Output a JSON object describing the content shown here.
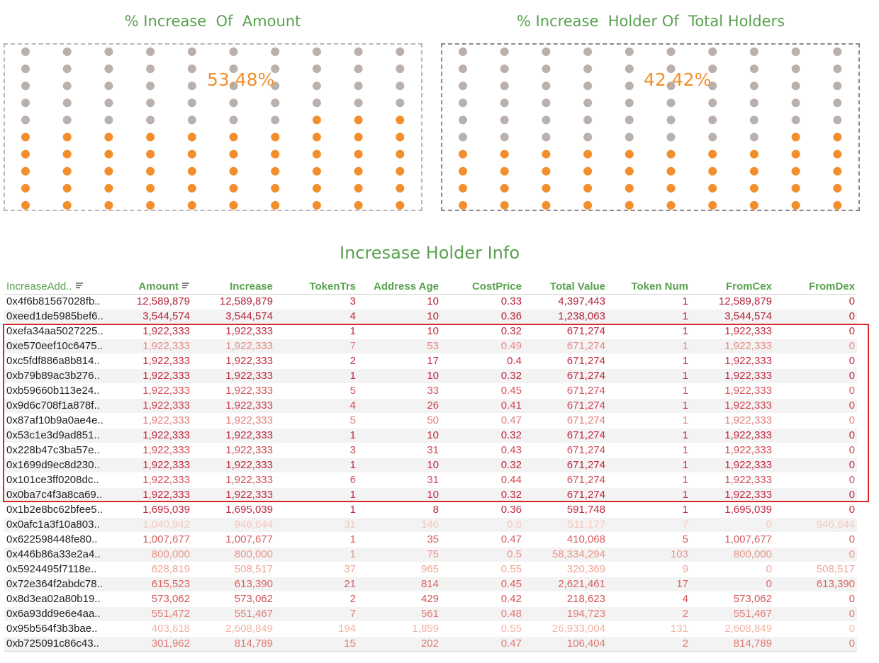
{
  "panels": [
    {
      "title": "% Increase  Of  Amount",
      "value_label": "53.48%",
      "percent": 53.48,
      "rows": 10,
      "cols": 10
    },
    {
      "title": "% Increase  Holder Of  Total Holders",
      "value_label": "42.42%",
      "percent": 42.42,
      "rows": 10,
      "cols": 10
    }
  ],
  "colors": {
    "filled": "#f28e2b",
    "empty": "#bab0ac",
    "title_green": "#59a14f",
    "highlight": "#d62728"
  },
  "table": {
    "title": "Incresase Holder Info",
    "columns": [
      "IncreaseAdd..",
      "Amount",
      "Increase",
      "TokenTrs",
      "Address Age",
      "CostPrice",
      "Total Value",
      "Token Num",
      "FromCex",
      "FromDex"
    ],
    "sorted_columns": [
      "IncreaseAdd..",
      "Amount"
    ],
    "rows": [
      {
        "cells": [
          "0x4f6b81567028fb..",
          "12,589,879",
          "12,589,879",
          "3",
          "10",
          "0.33",
          "4,397,443",
          "1",
          "12,589,879",
          "0"
        ],
        "color": "#b4243a"
      },
      {
        "cells": [
          "0xeed1de5985bef6..",
          "3,544,574",
          "3,544,574",
          "4",
          "10",
          "0.36",
          "1,238,063",
          "1",
          "3,544,574",
          "0"
        ],
        "color": "#b4243a"
      },
      {
        "cells": [
          "0xefa34aa5027225..",
          "1,922,333",
          "1,922,333",
          "1",
          "10",
          "0.32",
          "671,274",
          "1",
          "1,922,333",
          "0"
        ],
        "color": "#c0283f"
      },
      {
        "cells": [
          "0xe570eef10c6475..",
          "1,922,333",
          "1,922,333",
          "7",
          "53",
          "0.49",
          "671,274",
          "1",
          "1,922,333",
          "0"
        ],
        "color": "#e58a86"
      },
      {
        "cells": [
          "0xc5fdf886a8b814..",
          "1,922,333",
          "1,922,333",
          "2",
          "17",
          "0.4",
          "671,274",
          "1",
          "1,922,333",
          "0"
        ],
        "color": "#c52f44"
      },
      {
        "cells": [
          "0xb79b89ac3b276..",
          "1,922,333",
          "1,922,333",
          "1",
          "10",
          "0.32",
          "671,274",
          "1",
          "1,922,333",
          "0"
        ],
        "color": "#c0283f"
      },
      {
        "cells": [
          "0xb59660b113e24..",
          "1,922,333",
          "1,922,333",
          "5",
          "33",
          "0.45",
          "671,274",
          "1",
          "1,922,333",
          "0"
        ],
        "color": "#d4565c"
      },
      {
        "cells": [
          "0x9d6c708f1a878f..",
          "1,922,333",
          "1,922,333",
          "4",
          "26",
          "0.41",
          "671,274",
          "1",
          "1,922,333",
          "0"
        ],
        "color": "#cc4451"
      },
      {
        "cells": [
          "0x87af10b9a0ae4e..",
          "1,922,333",
          "1,922,333",
          "5",
          "50",
          "0.47",
          "671,274",
          "1",
          "1,922,333",
          "0"
        ],
        "color": "#e07e7c"
      },
      {
        "cells": [
          "0x53c1e3d9ad851..",
          "1,922,333",
          "1,922,333",
          "1",
          "10",
          "0.32",
          "671,274",
          "1",
          "1,922,333",
          "0"
        ],
        "color": "#c0283f"
      },
      {
        "cells": [
          "0x228b47c3ba57e..",
          "1,922,333",
          "1,922,333",
          "3",
          "31",
          "0.43",
          "671,274",
          "1",
          "1,922,333",
          "0"
        ],
        "color": "#cf4a55"
      },
      {
        "cells": [
          "0x1699d9ec8d230..",
          "1,922,333",
          "1,922,333",
          "1",
          "10",
          "0.32",
          "671,274",
          "1",
          "1,922,333",
          "0"
        ],
        "color": "#c0283f"
      },
      {
        "cells": [
          "0x101ce3ff0208dc..",
          "1,922,333",
          "1,922,333",
          "6",
          "31",
          "0.44",
          "671,274",
          "1",
          "1,922,333",
          "0"
        ],
        "color": "#d14f58"
      },
      {
        "cells": [
          "0x0ba7c4f3a8ca69..",
          "1,922,333",
          "1,922,333",
          "1",
          "10",
          "0.32",
          "671,274",
          "1",
          "1,922,333",
          "0"
        ],
        "color": "#c0283f"
      },
      {
        "cells": [
          "0x1b2e8bc62bfee5..",
          "1,695,039",
          "1,695,039",
          "1",
          "8",
          "0.36",
          "591,748",
          "1",
          "1,695,039",
          "0"
        ],
        "color": "#c0283f"
      },
      {
        "cells": [
          "0x0afc1a3f10a803..",
          "1,040,942",
          "946,644",
          "31",
          "146",
          "0.6",
          "511,177",
          "7",
          "0",
          "946,644"
        ],
        "color": "#f6c6bd"
      },
      {
        "cells": [
          "0x622598448fe80..",
          "1,007,677",
          "1,007,677",
          "1",
          "35",
          "0.47",
          "410,068",
          "5",
          "1,007,677",
          "0"
        ],
        "color": "#d65f62"
      },
      {
        "cells": [
          "0x446b86a33e2a4..",
          "800,000",
          "800,000",
          "1",
          "75",
          "0.5",
          "58,334,294",
          "103",
          "800,000",
          "0"
        ],
        "color": "#e9958b"
      },
      {
        "cells": [
          "0x5924495f7118e..",
          "628,819",
          "508,517",
          "37",
          "965",
          "0.55",
          "320,369",
          "9",
          "0",
          "508,517"
        ],
        "color": "#eea595"
      },
      {
        "cells": [
          "0x72e364f2abdc78..",
          "615,523",
          "613,390",
          "21",
          "814",
          "0.45",
          "2,621,461",
          "17",
          "0",
          "613,390"
        ],
        "color": "#d8625f"
      },
      {
        "cells": [
          "0x8d3ea02a80b19..",
          "573,062",
          "573,062",
          "2",
          "429",
          "0.42",
          "218,623",
          "4",
          "573,062",
          "0"
        ],
        "color": "#d35457"
      },
      {
        "cells": [
          "0x6a93dd9e6e4aa..",
          "551,472",
          "551,467",
          "7",
          "561",
          "0.48",
          "194,723",
          "2",
          "551,467",
          "0"
        ],
        "color": "#e07a74"
      },
      {
        "cells": [
          "0x95b564f3b3bae..",
          "403,618",
          "2,608,849",
          "194",
          "1,859",
          "0.55",
          "26,933,004",
          "131",
          "2,608,849",
          "0"
        ],
        "color": "#f3b3a3"
      },
      {
        "cells": [
          "0xb725091c86c43..",
          "301,962",
          "814,789",
          "15",
          "202",
          "0.47",
          "106,404",
          "2",
          "814,789",
          "0"
        ],
        "color": "#e07a74"
      }
    ]
  }
}
